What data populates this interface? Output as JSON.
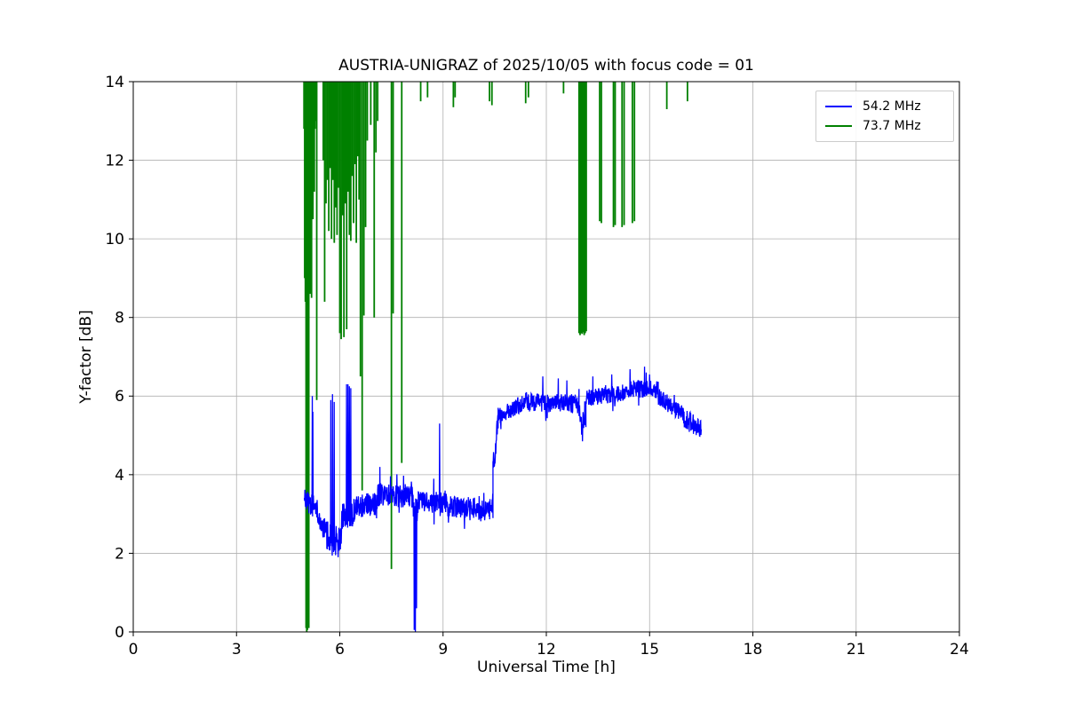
{
  "chart_data": {
    "type": "line",
    "title": "AUSTRIA-UNIGRAZ of 2025/10/05 with focus code = 01",
    "xlabel": "Universal Time [h]",
    "ylabel": "Y-factor [dB]",
    "xlim": [
      0,
      24
    ],
    "ylim": [
      0,
      14
    ],
    "xticks": [
      0,
      3,
      6,
      9,
      12,
      15,
      18,
      21,
      24
    ],
    "yticks": [
      0,
      2,
      4,
      6,
      8,
      10,
      12,
      14
    ],
    "grid": true,
    "grid_color": "#b0b0b0",
    "legend": {
      "position": "upper right",
      "entries": [
        {
          "label": "54.2 MHz",
          "color": "#0000ff"
        },
        {
          "label": "73.7 MHz",
          "color": "#008000"
        }
      ]
    },
    "series": [
      {
        "name": "54.2 MHz",
        "color": "#0000ff",
        "render": "noisy-segments",
        "segments": [
          {
            "x0": 4.97,
            "x1": 5.35,
            "y0": 3.35,
            "y1": 3.15,
            "noise": 0.28
          },
          {
            "x0": 5.35,
            "x1": 5.6,
            "y0": 3.0,
            "y1": 2.55,
            "noise": 0.3
          },
          {
            "x0": 5.6,
            "x1": 6.05,
            "y0": 2.45,
            "y1": 2.35,
            "noise": 0.38
          },
          {
            "x0": 6.05,
            "x1": 6.45,
            "y0": 2.9,
            "y1": 3.05,
            "noise": 0.35
          },
          {
            "x0": 6.45,
            "x1": 7.1,
            "y0": 3.2,
            "y1": 3.25,
            "noise": 0.3
          },
          {
            "x0": 7.1,
            "x1": 8.12,
            "y0": 3.5,
            "y1": 3.45,
            "noise": 0.3
          },
          {
            "x0": 8.12,
            "x1": 8.28,
            "y0": 3.2,
            "y1": 3.2,
            "noise": 0.3
          },
          {
            "x0": 8.28,
            "x1": 9.1,
            "y0": 3.3,
            "y1": 3.3,
            "noise": 0.28
          },
          {
            "x0": 9.1,
            "x1": 10.45,
            "y0": 3.2,
            "y1": 3.1,
            "noise": 0.28
          },
          {
            "x0": 10.45,
            "x1": 10.6,
            "y0": 4.2,
            "y1": 5.3,
            "noise": 0.35
          },
          {
            "x0": 10.6,
            "x1": 11.4,
            "y0": 5.5,
            "y1": 5.85,
            "noise": 0.22
          },
          {
            "x0": 11.4,
            "x1": 12.95,
            "y0": 5.85,
            "y1": 5.8,
            "noise": 0.24
          },
          {
            "x0": 12.95,
            "x1": 13.15,
            "y0": 5.5,
            "y1": 5.3,
            "noise": 0.3
          },
          {
            "x0": 13.15,
            "x1": 14.4,
            "y0": 5.95,
            "y1": 6.1,
            "noise": 0.22
          },
          {
            "x0": 14.4,
            "x1": 15.25,
            "y0": 6.2,
            "y1": 6.15,
            "noise": 0.22
          },
          {
            "x0": 15.25,
            "x1": 16.0,
            "y0": 6.0,
            "y1": 5.5,
            "noise": 0.22
          },
          {
            "x0": 16.0,
            "x1": 16.5,
            "y0": 5.4,
            "y1": 5.2,
            "noise": 0.28
          }
        ],
        "spikes": [
          {
            "x": 5.2,
            "y": 6.0
          },
          {
            "x": 5.22,
            "y": 5.6
          },
          {
            "x": 5.74,
            "y": 5.9
          },
          {
            "x": 5.79,
            "y": 6.05
          },
          {
            "x": 5.84,
            "y": 5.85
          },
          {
            "x": 5.88,
            "y": 1.95
          },
          {
            "x": 5.95,
            "y": 1.9
          },
          {
            "x": 6.2,
            "y": 6.3
          },
          {
            "x": 6.24,
            "y": 6.3
          },
          {
            "x": 6.28,
            "y": 6.25
          },
          {
            "x": 6.32,
            "y": 6.2
          },
          {
            "x": 8.16,
            "y": 0.05
          },
          {
            "x": 8.2,
            "y": 0.0
          },
          {
            "x": 8.23,
            "y": 0.6
          },
          {
            "x": 8.9,
            "y": 5.3
          },
          {
            "x": 11.9,
            "y": 6.5
          },
          {
            "x": 12.35,
            "y": 6.45
          },
          {
            "x": 12.6,
            "y": 6.4
          },
          {
            "x": 13.05,
            "y": 4.85
          },
          {
            "x": 13.35,
            "y": 6.5
          },
          {
            "x": 13.9,
            "y": 6.55
          },
          {
            "x": 14.85,
            "y": 6.75
          },
          {
            "x": 14.9,
            "y": 6.6
          },
          {
            "x": 15.0,
            "y": 6.55
          }
        ]
      },
      {
        "name": "73.7 MHz",
        "color": "#008000",
        "render": "vertical-spikes",
        "top": 14,
        "spikes": [
          {
            "x": 4.96,
            "y": 12.8
          },
          {
            "x": 4.98,
            "y": 9.0
          },
          {
            "x": 5.0,
            "y": 8.4
          },
          {
            "x": 5.02,
            "y": 0.1
          },
          {
            "x": 5.04,
            "y": 0.0
          },
          {
            "x": 5.06,
            "y": 0.05
          },
          {
            "x": 5.08,
            "y": 8.3
          },
          {
            "x": 5.1,
            "y": 0.1
          },
          {
            "x": 5.12,
            "y": 9.5
          },
          {
            "x": 5.14,
            "y": 8.6
          },
          {
            "x": 5.16,
            "y": 11.0
          },
          {
            "x": 5.18,
            "y": 8.5
          },
          {
            "x": 5.2,
            "y": 12.0
          },
          {
            "x": 5.22,
            "y": 10.5
          },
          {
            "x": 5.24,
            "y": 12.5
          },
          {
            "x": 5.26,
            "y": 11.2
          },
          {
            "x": 5.28,
            "y": 12.8
          },
          {
            "x": 5.3,
            "y": 13.0
          },
          {
            "x": 5.33,
            "y": 5.9
          },
          {
            "x": 5.52,
            "y": 12.0
          },
          {
            "x": 5.56,
            "y": 8.4
          },
          {
            "x": 5.6,
            "y": 10.9
          },
          {
            "x": 5.64,
            "y": 11.5
          },
          {
            "x": 5.68,
            "y": 10.2
          },
          {
            "x": 5.72,
            "y": 11.8
          },
          {
            "x": 5.76,
            "y": 10.0
          },
          {
            "x": 5.8,
            "y": 11.5
          },
          {
            "x": 5.84,
            "y": 9.9
          },
          {
            "x": 5.88,
            "y": 10.8
          },
          {
            "x": 5.92,
            "y": 10.1
          },
          {
            "x": 5.96,
            "y": 11.3
          },
          {
            "x": 6.0,
            "y": 7.6
          },
          {
            "x": 6.04,
            "y": 7.45
          },
          {
            "x": 6.08,
            "y": 10.6
          },
          {
            "x": 6.12,
            "y": 7.5
          },
          {
            "x": 6.16,
            "y": 10.9
          },
          {
            "x": 6.2,
            "y": 7.7
          },
          {
            "x": 6.24,
            "y": 11.2
          },
          {
            "x": 6.28,
            "y": 10.1
          },
          {
            "x": 6.32,
            "y": 9.95
          },
          {
            "x": 6.36,
            "y": 11.6
          },
          {
            "x": 6.4,
            "y": 10.4
          },
          {
            "x": 6.44,
            "y": 11.9
          },
          {
            "x": 6.48,
            "y": 9.9
          },
          {
            "x": 6.52,
            "y": 12.1
          },
          {
            "x": 6.56,
            "y": 11.0
          },
          {
            "x": 6.6,
            "y": 6.5
          },
          {
            "x": 6.65,
            "y": 3.6
          },
          {
            "x": 6.7,
            "y": 8.05
          },
          {
            "x": 6.75,
            "y": 10.3
          },
          {
            "x": 6.8,
            "y": 12.5
          },
          {
            "x": 6.9,
            "y": 12.9
          },
          {
            "x": 7.0,
            "y": 8.0
          },
          {
            "x": 7.05,
            "y": 12.2
          },
          {
            "x": 7.1,
            "y": 13.0
          },
          {
            "x": 7.5,
            "y": 1.6
          },
          {
            "x": 7.55,
            "y": 8.1
          },
          {
            "x": 7.8,
            "y": 4.3
          },
          {
            "x": 8.35,
            "y": 13.5
          },
          {
            "x": 8.55,
            "y": 13.6
          },
          {
            "x": 9.3,
            "y": 13.35
          },
          {
            "x": 9.35,
            "y": 13.6
          },
          {
            "x": 10.35,
            "y": 13.5
          },
          {
            "x": 10.42,
            "y": 13.4
          },
          {
            "x": 11.4,
            "y": 13.45
          },
          {
            "x": 11.48,
            "y": 13.6
          },
          {
            "x": 12.5,
            "y": 13.7
          },
          {
            "x": 12.95,
            "y": 7.6
          },
          {
            "x": 12.98,
            "y": 7.55
          },
          {
            "x": 13.01,
            "y": 7.6
          },
          {
            "x": 13.04,
            "y": 7.58
          },
          {
            "x": 13.07,
            "y": 7.62
          },
          {
            "x": 13.1,
            "y": 7.55
          },
          {
            "x": 13.13,
            "y": 7.6
          },
          {
            "x": 13.16,
            "y": 7.65
          },
          {
            "x": 13.55,
            "y": 10.45
          },
          {
            "x": 13.6,
            "y": 10.4
          },
          {
            "x": 13.95,
            "y": 10.3
          },
          {
            "x": 14.0,
            "y": 10.35
          },
          {
            "x": 14.2,
            "y": 10.3
          },
          {
            "x": 14.26,
            "y": 10.35
          },
          {
            "x": 14.5,
            "y": 10.4
          },
          {
            "x": 14.56,
            "y": 10.45
          },
          {
            "x": 15.5,
            "y": 13.3
          },
          {
            "x": 16.1,
            "y": 13.5
          }
        ]
      }
    ]
  }
}
